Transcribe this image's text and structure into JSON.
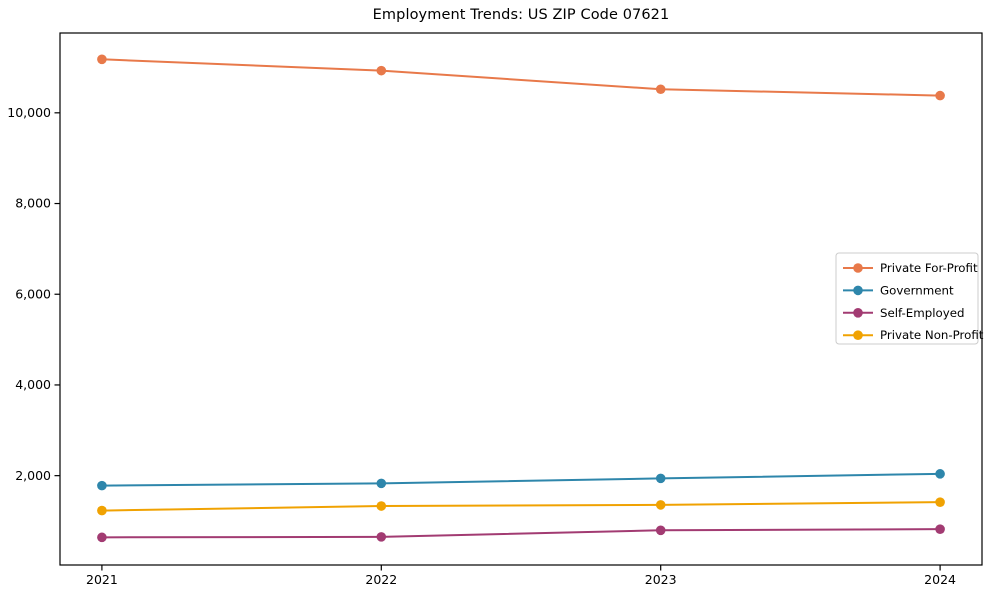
{
  "title": "Employment Trends: US ZIP Code 07621",
  "chart_data": {
    "type": "line",
    "title": "Employment Trends: US ZIP Code 07621",
    "xlabel": "",
    "ylabel": "",
    "x": [
      2021,
      2022,
      2023,
      2024
    ],
    "x_tick_labels": [
      "2021",
      "2022",
      "2023",
      "2024"
    ],
    "series": [
      {
        "name": "Private For-Profit",
        "color": "#e8794a",
        "values": [
          11180,
          10930,
          10520,
          10380
        ]
      },
      {
        "name": "Government",
        "color": "#2e86ab",
        "values": [
          1780,
          1830,
          1940,
          2040
        ]
      },
      {
        "name": "Self-Employed",
        "color": "#a23b72",
        "values": [
          640,
          650,
          795,
          820
        ]
      },
      {
        "name": "Private Non-Profit",
        "color": "#f0a202",
        "values": [
          1230,
          1330,
          1355,
          1415
        ]
      }
    ],
    "xlim": [
      2020.85,
      2024.15
    ],
    "ylim": [
      30,
      11760
    ],
    "y_ticks": [
      2000,
      4000,
      6000,
      8000,
      10000
    ],
    "y_tick_labels": [
      "2,000",
      "4,000",
      "6,000",
      "8,000",
      "10,000"
    ],
    "grid": false,
    "legend_position": "center right",
    "frame_color": "#000000",
    "legend_border_color": "#cccccc",
    "background_color": "#ffffff"
  }
}
